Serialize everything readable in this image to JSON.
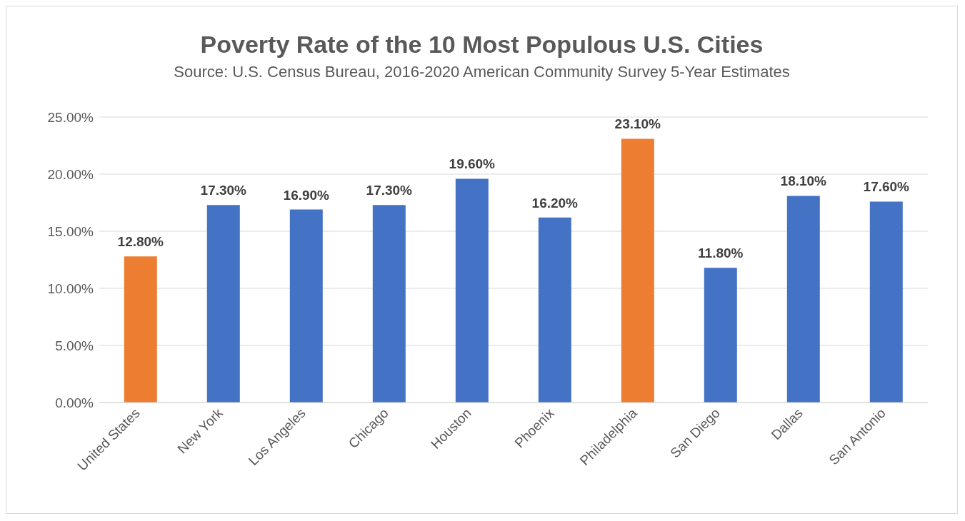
{
  "chart_data": {
    "type": "bar",
    "title": "Poverty Rate of the 10 Most Populous U.S. Cities",
    "subtitle": "Source: U.S. Census Bureau, 2016-2020 American Community Survey 5-Year Estimates",
    "categories": [
      "United States",
      "New York",
      "Los Angeles",
      "Chicago",
      "Houston",
      "Phoenix",
      "Philadelphia",
      "San Diego",
      "Dallas",
      "San Antonio"
    ],
    "values": [
      12.8,
      17.3,
      16.9,
      17.3,
      19.6,
      16.2,
      23.1,
      11.8,
      18.1,
      17.6
    ],
    "colors": [
      "#ed7d31",
      "#4472c4",
      "#4472c4",
      "#4472c4",
      "#4472c4",
      "#4472c4",
      "#ed7d31",
      "#4472c4",
      "#4472c4",
      "#4472c4"
    ],
    "value_labels": [
      "12.80%",
      "17.30%",
      "16.90%",
      "17.30%",
      "19.60%",
      "16.20%",
      "23.10%",
      "11.80%",
      "18.10%",
      "17.60%"
    ],
    "ylim": [
      0,
      25
    ],
    "yticks": [
      {
        "value": 0,
        "label": "0.00%"
      },
      {
        "value": 5,
        "label": "5.00%"
      },
      {
        "value": 10,
        "label": "10.00%"
      },
      {
        "value": 15,
        "label": "15.00%"
      },
      {
        "value": 20,
        "label": "20.00%"
      },
      {
        "value": 25,
        "label": "25.00%"
      }
    ],
    "grid": "y"
  }
}
